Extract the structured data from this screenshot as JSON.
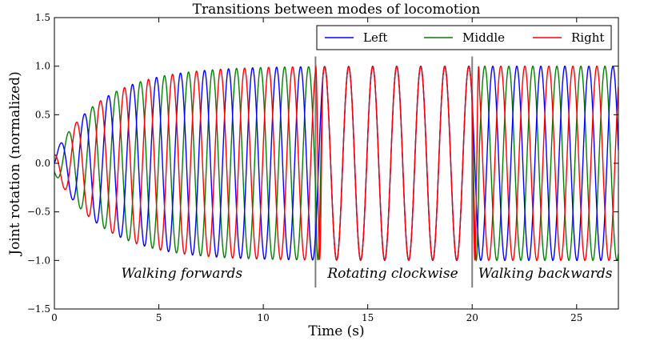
{
  "chart_data": {
    "type": "line",
    "title": "Transitions between modes of locomotion",
    "xlabel": "Time (s)",
    "ylabel": "Joint rotation (normalized)",
    "xlim": [
      0,
      27
    ],
    "ylim": [
      -1.5,
      1.5
    ],
    "x_ticks": [
      0,
      5,
      10,
      15,
      20,
      25
    ],
    "x_tick_labels": [
      "0",
      "5",
      "10",
      "15",
      "20",
      "25"
    ],
    "y_ticks": [
      -1.5,
      -1.0,
      -0.5,
      0.0,
      0.5,
      1.0,
      1.5
    ],
    "y_tick_labels": [
      "−1.5",
      "−1.0",
      "−0.5",
      "0.0",
      "0.5",
      "1.0",
      "1.5"
    ],
    "grid": false,
    "legend_position": "top-right",
    "series": [
      {
        "name": "Left",
        "color": "#0000ff"
      },
      {
        "name": "Middle",
        "color": "#008000"
      },
      {
        "name": "Right",
        "color": "#ff0000"
      }
    ],
    "dynamics": {
      "period_s": 1.15,
      "amplitude_growth_rate": 0.42,
      "initial_amplitude": 0.1,
      "phase_offsets_walking_forwards": {
        "Left": 0.0,
        "Middle": -0.333,
        "Right": -0.667
      },
      "phase_offsets_rotating_clockwise": {
        "Left": 0.0,
        "Middle": 0.0,
        "Right": 0.0
      },
      "phase_offsets_walking_backwards": {
        "Left": 0.0,
        "Middle": 0.333,
        "Right": 0.667
      }
    },
    "transitions": [
      12.5,
      20.0
    ],
    "transition_line_color": "#808080",
    "annotations": [
      {
        "text": "Walking forwards",
        "x": 6.1,
        "y": -1.18
      },
      {
        "text": "Rotating clockwise",
        "x": 16.2,
        "y": -1.18
      },
      {
        "text": "Walking backwards",
        "x": 23.5,
        "y": -1.18
      }
    ]
  }
}
